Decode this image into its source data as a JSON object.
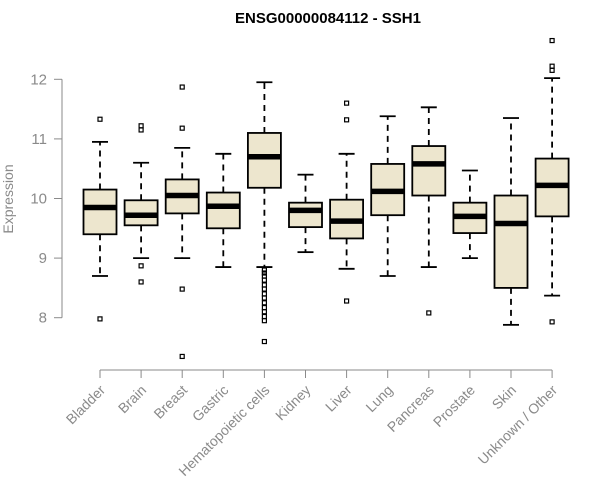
{
  "chart_data": {
    "type": "boxplot",
    "title": "ENSG00000084112 - SSH1",
    "ylabel": "Expression",
    "xlabel": "",
    "yticks": [
      8,
      9,
      10,
      11,
      12
    ],
    "ylim": [
      7.2,
      12.9
    ],
    "grid": false,
    "box_fill": "#ede6ce",
    "categories": [
      "Bladder",
      "Brain",
      "Breast",
      "Gastric",
      "Hematopoietic cells",
      "Kidney",
      "Liver",
      "Lung",
      "Pancreas",
      "Prostate",
      "Skin",
      "Unknown / Other"
    ],
    "boxes": [
      {
        "whisker_low": 8.7,
        "q1": 9.4,
        "median": 9.85,
        "q3": 10.15,
        "whisker_high": 10.95,
        "outliers": [
          11.33,
          7.98
        ]
      },
      {
        "whisker_low": 9.0,
        "q1": 9.55,
        "median": 9.72,
        "q3": 9.97,
        "whisker_high": 10.6,
        "outliers": [
          11.22,
          11.15,
          8.87,
          8.6
        ]
      },
      {
        "whisker_low": 9.0,
        "q1": 9.75,
        "median": 10.05,
        "q3": 10.32,
        "whisker_high": 10.85,
        "outliers": [
          11.87,
          11.18,
          8.48,
          7.35
        ]
      },
      {
        "whisker_low": 8.85,
        "q1": 9.5,
        "median": 9.87,
        "q3": 10.1,
        "whisker_high": 10.75,
        "outliers": []
      },
      {
        "whisker_low": 8.85,
        "q1": 10.18,
        "median": 10.7,
        "q3": 11.1,
        "whisker_high": 11.95,
        "outliers": [
          8.8,
          8.75,
          8.7,
          8.63,
          8.55,
          8.48,
          8.4,
          8.33,
          8.25,
          8.17,
          8.1,
          8.02,
          7.95,
          7.6
        ]
      },
      {
        "whisker_low": 9.1,
        "q1": 9.52,
        "median": 9.8,
        "q3": 9.93,
        "whisker_high": 10.4,
        "outliers": []
      },
      {
        "whisker_low": 8.82,
        "q1": 9.33,
        "median": 9.62,
        "q3": 9.98,
        "whisker_high": 10.75,
        "outliers": [
          11.6,
          11.32,
          8.28
        ]
      },
      {
        "whisker_low": 8.7,
        "q1": 9.72,
        "median": 10.12,
        "q3": 10.58,
        "whisker_high": 11.38,
        "outliers": []
      },
      {
        "whisker_low": 8.85,
        "q1": 10.05,
        "median": 10.58,
        "q3": 10.88,
        "whisker_high": 11.53,
        "outliers": [
          8.08
        ]
      },
      {
        "whisker_low": 9.0,
        "q1": 9.42,
        "median": 9.7,
        "q3": 9.93,
        "whisker_high": 10.47,
        "outliers": []
      },
      {
        "whisker_low": 7.88,
        "q1": 8.5,
        "median": 9.58,
        "q3": 10.05,
        "whisker_high": 11.35,
        "outliers": []
      },
      {
        "whisker_low": 8.37,
        "q1": 9.7,
        "median": 10.22,
        "q3": 10.67,
        "whisker_high": 12.02,
        "outliers": [
          12.65,
          12.22,
          12.15,
          7.93
        ]
      }
    ]
  }
}
